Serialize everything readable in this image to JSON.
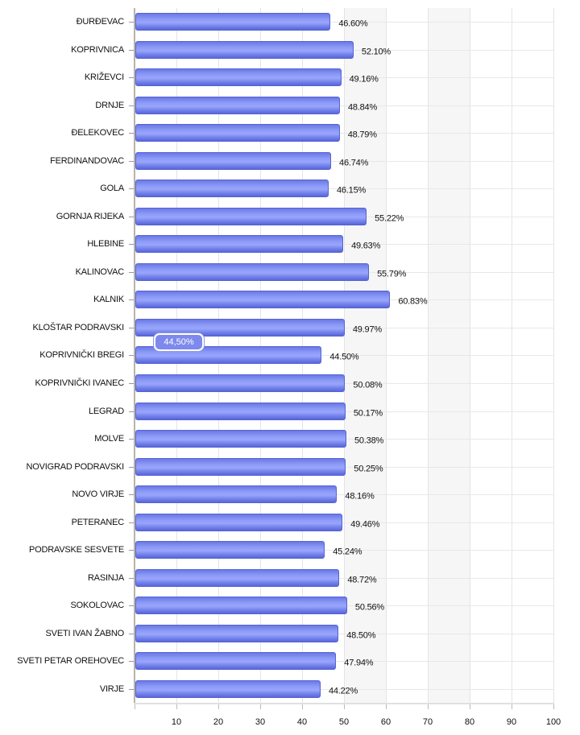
{
  "chart_data": {
    "type": "bar",
    "orientation": "horizontal",
    "title": "",
    "xlabel": "",
    "ylabel": "",
    "xlim": [
      0,
      100
    ],
    "x_ticks": [
      10,
      20,
      30,
      40,
      50,
      60,
      70,
      80,
      90,
      100
    ],
    "grid": true,
    "legend": null,
    "bar_color": "#7e8bf0",
    "categories": [
      "ĐURĐEVAC",
      "KOPRIVNICA",
      "KRIŽEVCI",
      "DRNJE",
      "ĐELEKOVEC",
      "FERDINANDOVAC",
      "GOLA",
      "GORNJA RIJEKA",
      "HLEBINE",
      "KALINOVAC",
      "KALNIK",
      "KLOŠTAR PODRAVSKI",
      "KOPRIVNIČKI BREGI",
      "KOPRIVNIČKI IVANEC",
      "LEGRAD",
      "MOLVE",
      "NOVIGRAD PODRAVSKI",
      "NOVO VIRJE",
      "PETERANEC",
      "PODRAVSKE SESVETE",
      "RASINJA",
      "SOKOLOVAC",
      "SVETI IVAN ŽABNO",
      "SVETI PETAR OREHOVEC",
      "VIRJE"
    ],
    "values": [
      46.6,
      52.1,
      49.16,
      48.84,
      48.79,
      46.74,
      46.15,
      55.22,
      49.63,
      55.79,
      60.83,
      49.97,
      44.5,
      50.08,
      50.17,
      50.38,
      50.25,
      48.16,
      49.46,
      45.24,
      48.72,
      50.56,
      48.5,
      47.94,
      44.22
    ],
    "value_labels": [
      "46.60%",
      "52.10%",
      "49.16%",
      "48.84%",
      "48.79%",
      "46.74%",
      "46.15%",
      "55.22%",
      "49.63%",
      "55.79%",
      "60.83%",
      "49.97%",
      "44.50%",
      "50.08%",
      "50.17%",
      "50.38%",
      "50.25%",
      "48.16%",
      "49.46%",
      "45.24%",
      "48.72%",
      "50.56%",
      "48.50%",
      "47.94%",
      "44.22%"
    ],
    "tooltip": {
      "category": "KOPRIVNIČKI BREGI",
      "text": "44,50%"
    }
  }
}
